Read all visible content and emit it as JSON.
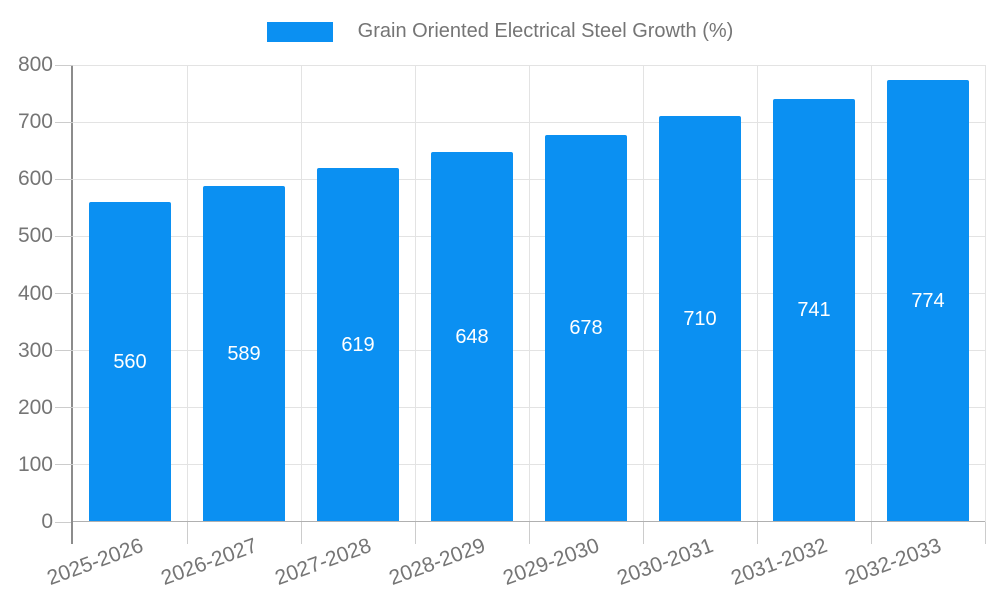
{
  "chart_data": {
    "type": "bar",
    "title": "Grain Oriented Electrical Steel Growth (%)",
    "categories": [
      "2025-2026",
      "2026-2027",
      "2027-2028",
      "2028-2029",
      "2029-2030",
      "2030-2031",
      "2031-2032",
      "2032-2033"
    ],
    "values": [
      560,
      589,
      619,
      648,
      678,
      710,
      741,
      774
    ],
    "xlabel": "",
    "ylabel": "",
    "ylim": [
      0,
      800
    ],
    "yticks": [
      0,
      100,
      200,
      300,
      400,
      500,
      600,
      700,
      800
    ],
    "grid": true,
    "legend_position": "top-center",
    "bar_labels_shown": true,
    "colors": {
      "bar": "#0b90f2",
      "bar_label": "#ffffff",
      "axis_text": "#757575",
      "gridline": "#e3e3e3",
      "baseline": "#b0b0b0",
      "axis_line": "#8c8c8c",
      "tick": "#cccccc",
      "background": "#ffffff"
    }
  }
}
